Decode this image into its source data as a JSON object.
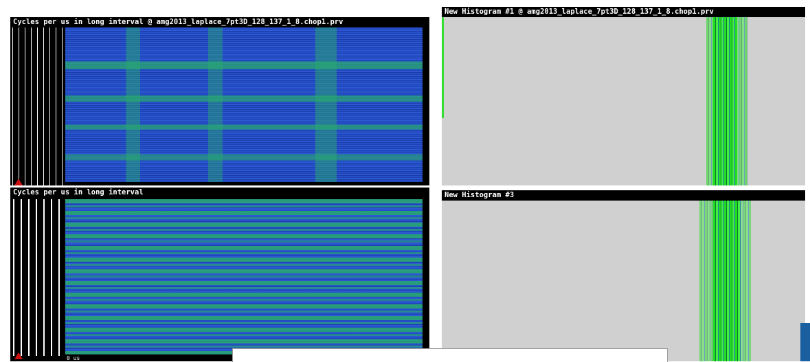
{
  "windows": [
    {
      "title": "Cycles per us in long interval @ amg2013_laplace_7pt3D_128_137_1_8.chop1.prv"
    },
    {
      "title": "Cycles per us in long interval"
    },
    {
      "title": "New Histogram #1 @ amg2013_laplace_7pt3D_128_137_1_8.chop1.prv"
    },
    {
      "title": "New Histogram #3"
    }
  ],
  "time_label": "0 us"
}
